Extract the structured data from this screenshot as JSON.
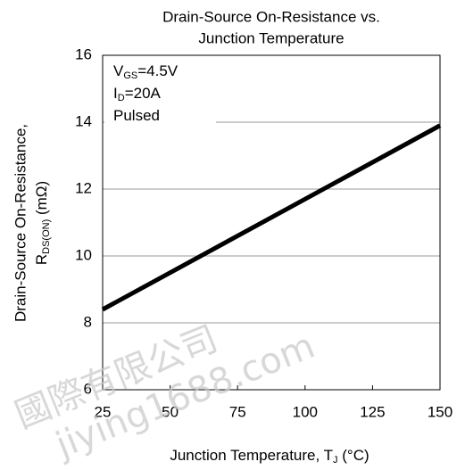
{
  "chart_data": {
    "type": "line",
    "title": [
      "Drain-Source On-Resistance vs.",
      "Junction Temperature"
    ],
    "y_label": {
      "line1": "Drain-Source On-Resistance,",
      "main": "R",
      "sub": "DS(ON)",
      "rest": " (mΩ)"
    },
    "x_label": {
      "main": "Junction Temperature, T",
      "sub": "J",
      "rest": " (°C)"
    },
    "annotations": [
      {
        "main": "V",
        "sub": "GS",
        "rest": "=4.5V"
      },
      {
        "main": "I",
        "sub": "D",
        "rest": "=20A"
      },
      {
        "main": "Pulsed",
        "sub": "",
        "rest": ""
      }
    ],
    "watermark": [
      "國際有限公司",
      "jiying1688.com"
    ],
    "x": [
      25,
      150
    ],
    "series": [
      {
        "name": "RDS(ON)",
        "color": "#000000",
        "values": [
          8.4,
          13.9
        ]
      }
    ],
    "xlim": [
      25,
      150
    ],
    "xticks": [
      25,
      50,
      75,
      100,
      125,
      150
    ],
    "ylim": [
      6,
      16
    ],
    "yticks": [
      6,
      8,
      10,
      12,
      14,
      16
    ],
    "grid": true
  }
}
